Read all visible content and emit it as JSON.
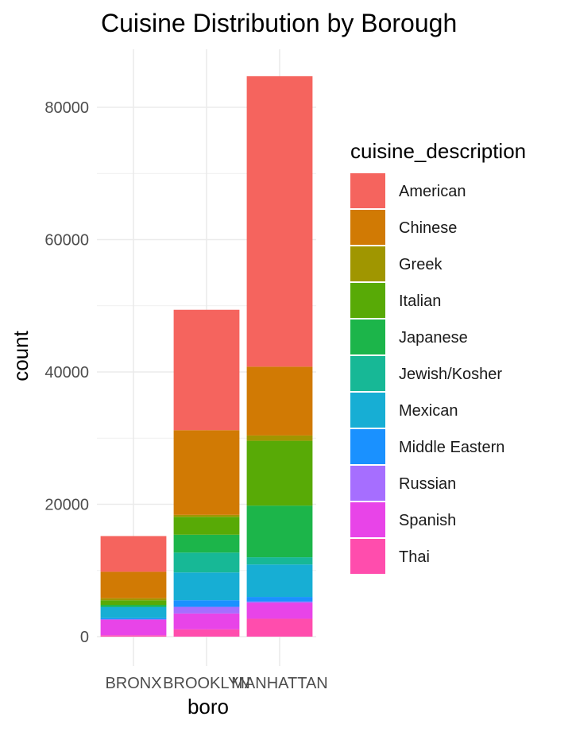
{
  "chart_data": {
    "type": "bar",
    "stacked": true,
    "title": "Cuisine Distribution by Borough",
    "xlabel": "boro",
    "ylabel": "count",
    "categories": [
      "BRONX",
      "BROOKLYN",
      "MANHATTAN"
    ],
    "ylim": [
      0,
      87000
    ],
    "yticks": [
      0,
      20000,
      40000,
      60000,
      80000
    ],
    "grid": true,
    "legend": {
      "title": "cuisine_description",
      "position": "right"
    },
    "series": [
      {
        "name": "Thai",
        "color": "#FF4DAD",
        "values": [
          200,
          1100,
          2700
        ]
      },
      {
        "name": "Spanish",
        "color": "#E844E8",
        "values": [
          2400,
          2400,
          2400
        ]
      },
      {
        "name": "Russian",
        "color": "#A66EFF",
        "values": [
          0,
          1000,
          200
        ]
      },
      {
        "name": "Middle Eastern",
        "color": "#1A91FF",
        "values": [
          200,
          1000,
          700
        ]
      },
      {
        "name": "Mexican",
        "color": "#17AED4",
        "values": [
          1700,
          4200,
          4900
        ]
      },
      {
        "name": "Jewish/Kosher",
        "color": "#17B896",
        "values": [
          0,
          3000,
          1100
        ]
      },
      {
        "name": "Japanese",
        "color": "#1CB54A",
        "values": [
          300,
          2700,
          7800
        ]
      },
      {
        "name": "Italian",
        "color": "#58AA06",
        "values": [
          700,
          2700,
          9800
        ]
      },
      {
        "name": "Greek",
        "color": "#A09600",
        "values": [
          300,
          300,
          800
        ]
      },
      {
        "name": "Chinese",
        "color": "#D17A04",
        "values": [
          4000,
          12800,
          10400
        ]
      },
      {
        "name": "American",
        "color": "#F5645E",
        "values": [
          5400,
          18200,
          43900
        ]
      }
    ],
    "legend_order": [
      "American",
      "Chinese",
      "Greek",
      "Italian",
      "Japanese",
      "Jewish/Kosher",
      "Mexican",
      "Middle Eastern",
      "Russian",
      "Spanish",
      "Thai"
    ]
  }
}
